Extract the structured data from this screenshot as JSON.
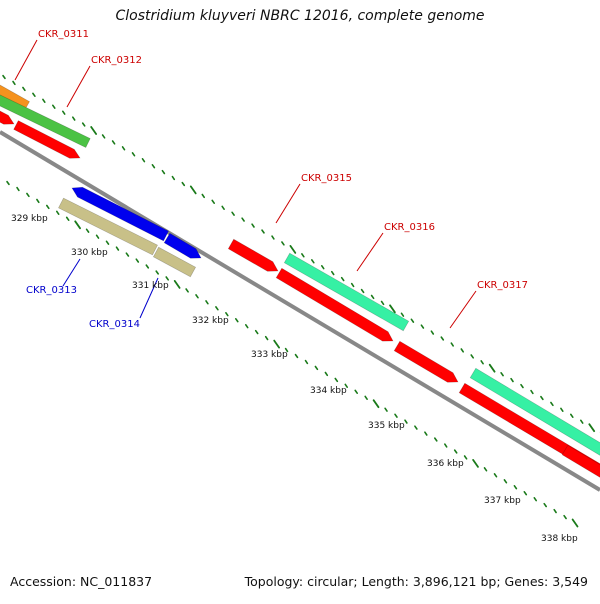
{
  "title": "Clostridium kluyveri NBRC 12016, complete genome",
  "accession": "Accession: NC_011837",
  "summary": "Topology: circular; Length: 3,896,121 bp; Genes: 3,549",
  "ruler": {
    "ticks": [
      "329 kbp",
      "330 kbp",
      "331 kbp",
      "332 kbp",
      "333 kbp",
      "334 kbp",
      "335 kbp",
      "336 kbp",
      "337 kbp",
      "338 kbp"
    ]
  },
  "genes": {
    "top": [
      "CKR_0311",
      "CKR_0312",
      "CKR_0315",
      "CKR_0316",
      "CKR_0317"
    ],
    "bottom": [
      "CKR_0313",
      "CKR_0314"
    ]
  },
  "colors": {
    "orange": "#f5921e",
    "green": "#4bc244",
    "red": "#ff0000",
    "aqua": "#36f0a4",
    "blue": "#0000ee",
    "khaki": "#c8c088",
    "backbone": "#888888",
    "tick": "#1a7a1a",
    "label_top": "#cc0000",
    "label_bottom": "#0000cc"
  }
}
